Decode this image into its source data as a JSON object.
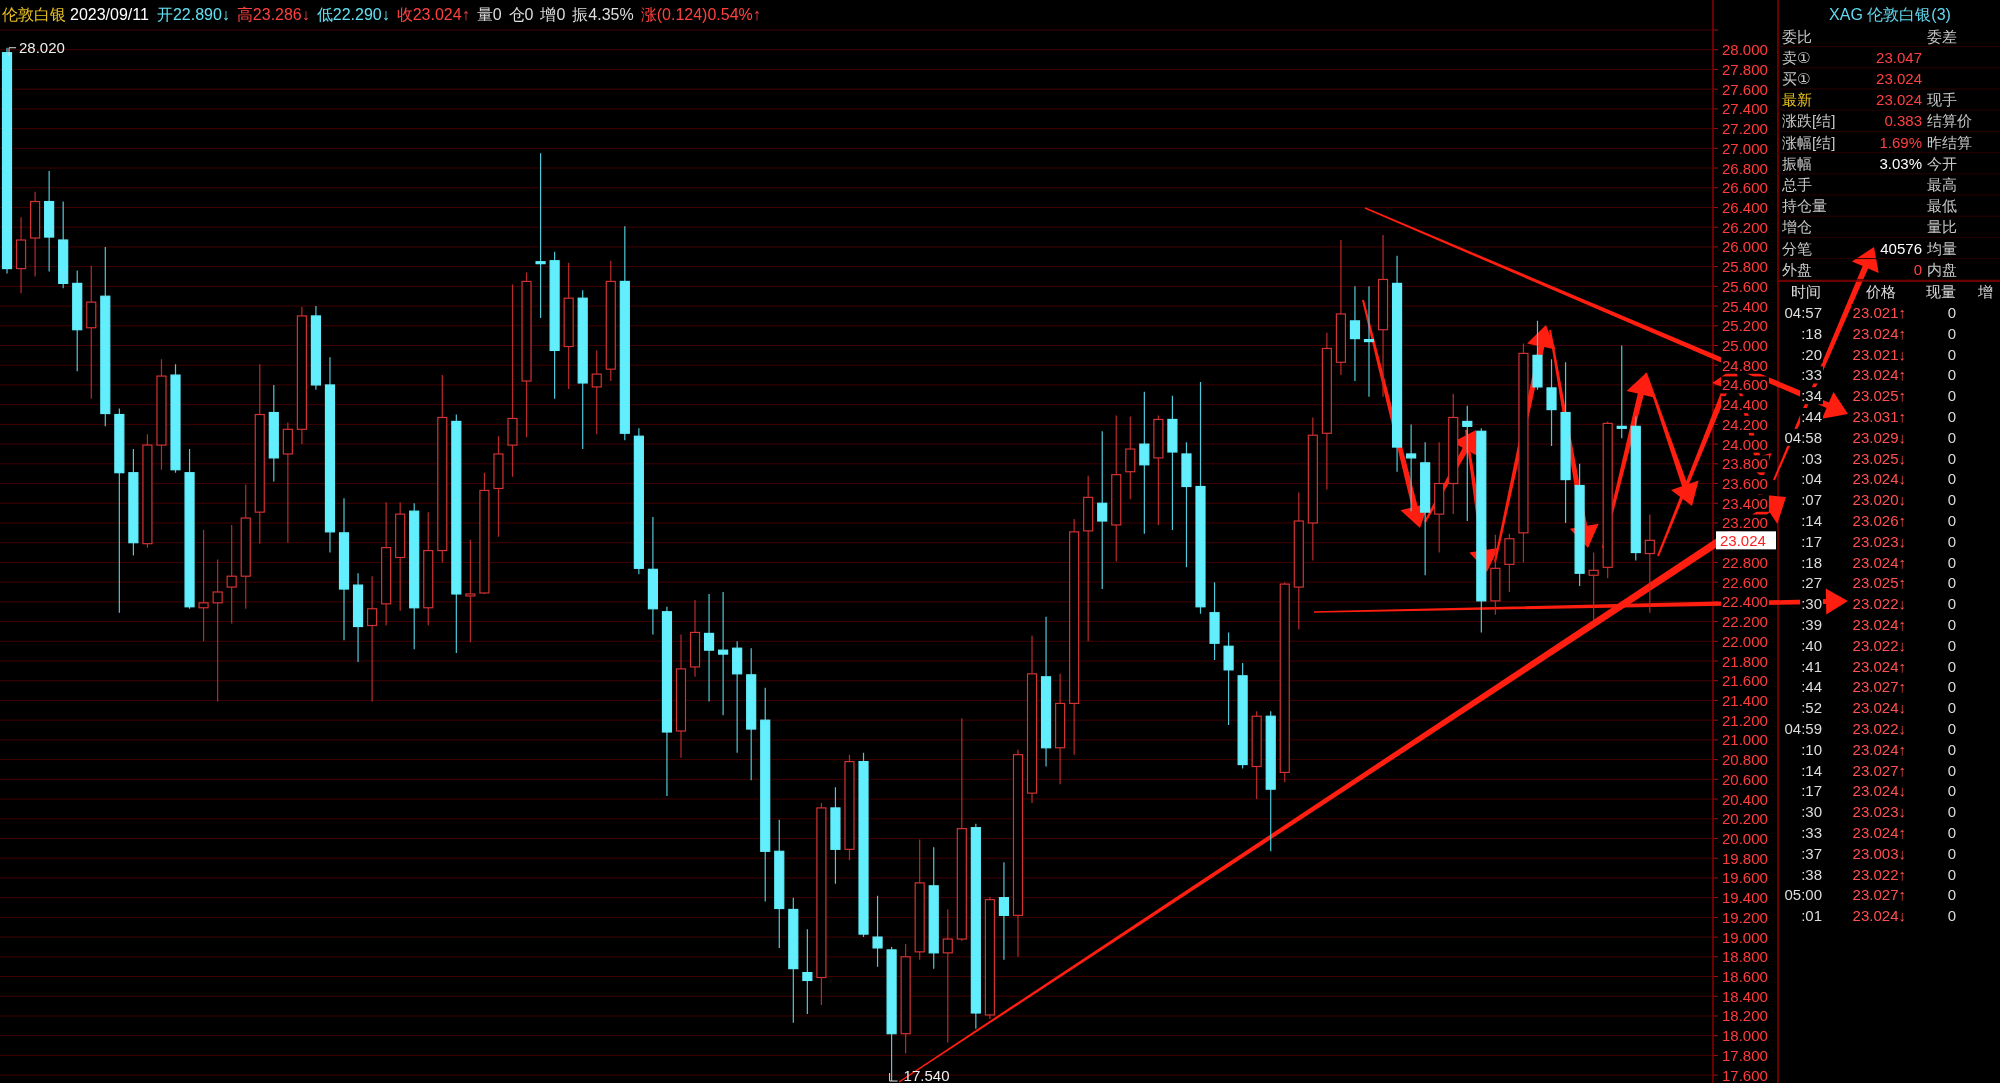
{
  "chart_data": [
    {
      "type": "candlestick",
      "title": "伦敦白银",
      "annotations": [
        "2023/09/11",
        "开22.890↓",
        "高23.286↓",
        "低22.290↓",
        "收23.024↑",
        "量0",
        "仓0",
        "增0",
        "振4.35%",
        "涨(0.124)0.54%↑",
        "28.020",
        "17.540",
        "23.024"
      ],
      "categories": [
        null,
        null,
        null,
        null,
        null,
        null,
        null,
        null,
        null,
        null,
        null,
        null,
        null,
        null,
        null,
        null,
        null,
        null,
        null,
        null,
        null,
        null,
        null,
        null,
        null,
        null,
        null,
        null,
        null,
        null,
        null,
        null,
        null,
        null,
        null,
        null,
        null,
        null,
        null,
        null,
        null,
        null,
        null,
        null,
        null,
        null,
        null,
        null,
        null,
        null,
        null,
        null,
        null,
        null,
        null,
        null,
        null,
        null,
        null,
        null,
        null,
        null,
        null,
        null,
        null,
        null,
        null,
        null,
        null,
        null,
        null,
        null,
        null,
        null,
        null,
        null,
        null,
        null,
        null,
        null,
        null,
        null,
        null,
        null,
        null,
        null,
        null,
        null,
        null,
        null,
        null,
        null,
        null,
        null,
        null,
        null,
        null,
        null,
        null,
        null,
        null,
        null,
        null,
        null,
        null,
        null,
        null,
        null,
        null,
        null,
        null,
        null,
        null,
        null,
        null,
        null,
        null,
        null,
        null,
        null,
        null,
        null
      ],
      "ohlc": [
        [
          27.97,
          28.02,
          25.73,
          25.78
        ],
        [
          25.78,
          26.3,
          25.53,
          26.07
        ],
        [
          26.09,
          26.56,
          25.7,
          26.46
        ],
        [
          26.46,
          26.77,
          25.75,
          26.1
        ],
        [
          26.07,
          26.46,
          25.58,
          25.63
        ],
        [
          25.63,
          25.76,
          24.74,
          25.16
        ],
        [
          25.18,
          25.81,
          24.46,
          25.44
        ],
        [
          25.5,
          26.0,
          24.18,
          24.31
        ],
        [
          24.3,
          24.36,
          22.29,
          23.71
        ],
        [
          23.71,
          23.95,
          22.87,
          23.0
        ],
        [
          22.99,
          24.1,
          22.95,
          23.99
        ],
        [
          23.99,
          24.86,
          23.74,
          24.69
        ],
        [
          24.7,
          24.81,
          23.71,
          23.74
        ],
        [
          23.71,
          23.95,
          22.33,
          22.35
        ],
        [
          22.34,
          23.13,
          22.0,
          22.39
        ],
        [
          22.39,
          22.83,
          21.39,
          22.5
        ],
        [
          22.55,
          23.18,
          22.18,
          22.66
        ],
        [
          22.66,
          23.59,
          22.33,
          23.25
        ],
        [
          23.31,
          24.81,
          22.99,
          24.3
        ],
        [
          24.32,
          24.6,
          23.62,
          23.86
        ],
        [
          23.9,
          24.22,
          23.0,
          24.15
        ],
        [
          24.15,
          25.39,
          24.0,
          25.3
        ],
        [
          25.3,
          25.4,
          24.55,
          24.6
        ],
        [
          24.6,
          24.88,
          22.9,
          23.11
        ],
        [
          23.1,
          23.45,
          22.01,
          22.53
        ],
        [
          22.57,
          22.69,
          21.79,
          22.15
        ],
        [
          22.16,
          22.66,
          21.39,
          22.33
        ],
        [
          22.38,
          23.41,
          22.16,
          22.95
        ],
        [
          22.85,
          23.41,
          22.31,
          23.29
        ],
        [
          23.32,
          23.4,
          21.92,
          22.34
        ],
        [
          22.34,
          23.31,
          22.16,
          22.92
        ],
        [
          22.92,
          24.7,
          22.8,
          24.27
        ],
        [
          24.23,
          24.3,
          21.88,
          22.48
        ],
        [
          22.46,
          23.03,
          21.99,
          22.48
        ],
        [
          22.49,
          23.71,
          22.48,
          23.53
        ],
        [
          23.55,
          24.08,
          23.06,
          23.9
        ],
        [
          23.99,
          25.62,
          23.67,
          24.26
        ],
        [
          24.64,
          25.74,
          24.07,
          25.65
        ],
        [
          25.85,
          26.95,
          25.28,
          25.83
        ],
        [
          25.86,
          25.95,
          24.46,
          24.95
        ],
        [
          24.99,
          25.84,
          24.56,
          25.48
        ],
        [
          25.48,
          25.56,
          23.95,
          24.62
        ],
        [
          24.58,
          24.95,
          24.1,
          24.71
        ],
        [
          24.76,
          25.86,
          24.64,
          25.65
        ],
        [
          25.65,
          26.21,
          24.04,
          24.11
        ],
        [
          24.08,
          24.16,
          22.68,
          22.74
        ],
        [
          22.73,
          23.26,
          22.07,
          22.33
        ],
        [
          22.3,
          22.35,
          20.43,
          21.08
        ],
        [
          21.09,
          22.07,
          20.82,
          21.72
        ],
        [
          21.74,
          22.42,
          21.64,
          22.09
        ],
        [
          22.08,
          22.48,
          21.39,
          21.91
        ],
        [
          21.91,
          22.5,
          21.25,
          21.87
        ],
        [
          21.93,
          22.0,
          20.87,
          21.67
        ],
        [
          21.66,
          21.93,
          20.59,
          21.11
        ],
        [
          21.2,
          21.53,
          19.36,
          19.87
        ],
        [
          19.87,
          20.19,
          18.89,
          19.29
        ],
        [
          19.28,
          19.4,
          18.13,
          18.68
        ],
        [
          18.64,
          19.08,
          18.22,
          18.56
        ],
        [
          18.59,
          20.36,
          18.31,
          20.31
        ],
        [
          20.31,
          20.52,
          19.54,
          19.89
        ],
        [
          19.89,
          20.85,
          19.78,
          20.78
        ],
        [
          20.78,
          20.87,
          19.0,
          19.03
        ],
        [
          19.0,
          19.42,
          18.7,
          18.89
        ],
        [
          18.87,
          18.9,
          17.54,
          18.02
        ],
        [
          18.02,
          18.93,
          17.82,
          18.8
        ],
        [
          18.85,
          19.99,
          18.77,
          19.55
        ],
        [
          19.52,
          19.91,
          18.68,
          18.84
        ],
        [
          18.84,
          19.28,
          17.93,
          18.98
        ],
        [
          18.98,
          21.22,
          18.96,
          20.1
        ],
        [
          20.11,
          20.15,
          18.07,
          18.23
        ],
        [
          18.21,
          19.41,
          18.17,
          19.38
        ],
        [
          19.4,
          19.76,
          18.77,
          19.22
        ],
        [
          19.22,
          20.9,
          18.8,
          20.85
        ],
        [
          20.46,
          22.06,
          20.36,
          21.67
        ],
        [
          21.64,
          22.25,
          20.73,
          20.92
        ],
        [
          20.92,
          21.67,
          20.55,
          21.37
        ],
        [
          21.37,
          23.24,
          20.85,
          23.11
        ],
        [
          23.12,
          23.68,
          22.0,
          23.46
        ],
        [
          23.4,
          24.13,
          22.53,
          23.22
        ],
        [
          23.18,
          24.29,
          22.81,
          23.69
        ],
        [
          23.72,
          24.28,
          23.44,
          23.95
        ],
        [
          24.0,
          24.53,
          23.09,
          23.79
        ],
        [
          23.86,
          24.29,
          23.18,
          24.25
        ],
        [
          24.25,
          24.49,
          23.13,
          23.92
        ],
        [
          23.9,
          24.02,
          22.75,
          23.57
        ],
        [
          23.57,
          24.63,
          22.28,
          22.35
        ],
        [
          22.29,
          22.6,
          21.81,
          21.98
        ],
        [
          21.95,
          22.09,
          21.15,
          21.71
        ],
        [
          21.65,
          21.78,
          20.71,
          20.75
        ],
        [
          20.73,
          21.29,
          20.4,
          21.24
        ],
        [
          21.24,
          21.29,
          19.87,
          20.5
        ],
        [
          20.67,
          22.6,
          20.57,
          22.58
        ],
        [
          22.55,
          23.51,
          22.12,
          23.22
        ],
        [
          23.2,
          24.27,
          22.82,
          24.09
        ],
        [
          24.11,
          25.13,
          23.54,
          24.97
        ],
        [
          24.83,
          26.07,
          24.7,
          25.32
        ],
        [
          25.25,
          25.6,
          24.64,
          25.07
        ],
        [
          25.06,
          25.6,
          24.48,
          25.04
        ],
        [
          25.16,
          26.12,
          24.48,
          25.67
        ],
        [
          25.63,
          25.91,
          23.72,
          23.97
        ],
        [
          23.9,
          24.2,
          23.32,
          23.86
        ],
        [
          23.81,
          24.02,
          22.67,
          23.31
        ],
        [
          23.29,
          24.02,
          22.9,
          23.6
        ],
        [
          23.6,
          24.51,
          23.29,
          24.27
        ],
        [
          24.23,
          24.39,
          23.22,
          24.18
        ],
        [
          24.13,
          24.16,
          22.09,
          22.41
        ],
        [
          22.41,
          23.08,
          22.27,
          22.74
        ],
        [
          22.78,
          23.09,
          22.5,
          23.04
        ],
        [
          23.1,
          25.02,
          22.8,
          24.92
        ],
        [
          24.9,
          25.25,
          24.55,
          24.58
        ],
        [
          24.57,
          24.86,
          23.98,
          24.35
        ],
        [
          24.32,
          24.83,
          23.2,
          23.64
        ],
        [
          23.58,
          23.8,
          22.56,
          22.69
        ],
        [
          22.67,
          22.9,
          22.21,
          22.72
        ],
        [
          22.75,
          24.23,
          22.64,
          24.21
        ],
        [
          24.18,
          25.0,
          24.06,
          24.16
        ],
        [
          24.18,
          24.28,
          22.82,
          22.9
        ],
        [
          22.89,
          23.286,
          22.29,
          23.024
        ],
        null,
        null,
        null,
        null
      ],
      "ylim": [
        17.52,
        28.2
      ],
      "yticks": [
        {
          "value": 17.6,
          "label": "17.600"
        },
        {
          "value": 17.8,
          "label": "17.800"
        },
        {
          "value": 18.0,
          "label": "18.000"
        },
        {
          "value": 18.2,
          "label": "18.200"
        },
        {
          "value": 18.4,
          "label": "18.400"
        },
        {
          "value": 18.6,
          "label": "18.600"
        },
        {
          "value": 18.8,
          "label": "18.800"
        },
        {
          "value": 19.0,
          "label": "19.000"
        },
        {
          "value": 19.2,
          "label": "19.200"
        },
        {
          "value": 19.4,
          "label": "19.400"
        },
        {
          "value": 19.6,
          "label": "19.600"
        },
        {
          "value": 19.8,
          "label": "19.800"
        },
        {
          "value": 20.0,
          "label": "20.000"
        },
        {
          "value": 20.2,
          "label": "20.200"
        },
        {
          "value": 20.4,
          "label": "20.400"
        },
        {
          "value": 20.6,
          "label": "20.600"
        },
        {
          "value": 20.8,
          "label": "20.800"
        },
        {
          "value": 21.0,
          "label": "21.000"
        },
        {
          "value": 21.2,
          "label": "21.200"
        },
        {
          "value": 21.4,
          "label": "21.400"
        },
        {
          "value": 21.6,
          "label": "21.600"
        },
        {
          "value": 21.8,
          "label": "21.800"
        },
        {
          "value": 22.0,
          "label": "22.000"
        },
        {
          "value": 22.2,
          "label": "22.200"
        },
        {
          "value": 22.4,
          "label": "22.400"
        },
        {
          "value": 22.6,
          "label": "22.600"
        },
        {
          "value": 22.8,
          "label": "22.800"
        },
        {
          "value": 23.0,
          "label": null
        },
        {
          "value": 23.2,
          "label": "23.200"
        },
        {
          "value": 23.4,
          "label": "23.400"
        },
        {
          "value": 23.6,
          "label": "23.600"
        },
        {
          "value": 23.8,
          "label": "23.800"
        },
        {
          "value": 24.0,
          "label": "24.000"
        },
        {
          "value": 24.2,
          "label": "24.200"
        },
        {
          "value": 24.4,
          "label": "24.400"
        },
        {
          "value": 24.6,
          "label": "24.600"
        },
        {
          "value": 24.8,
          "label": "24.800"
        },
        {
          "value": 25.0,
          "label": "25.000"
        },
        {
          "value": 25.2,
          "label": "25.200"
        },
        {
          "value": 25.4,
          "label": "25.400"
        },
        {
          "value": 25.6,
          "label": "25.600"
        },
        {
          "value": 25.8,
          "label": "25.800"
        },
        {
          "value": 26.0,
          "label": "26.000"
        },
        {
          "value": 26.2,
          "label": "26.200"
        },
        {
          "value": 26.4,
          "label": "26.400"
        },
        {
          "value": 26.6,
          "label": "26.600"
        },
        {
          "value": 26.8,
          "label": "26.800"
        },
        {
          "value": 27.0,
          "label": "27.000"
        },
        {
          "value": 27.2,
          "label": "27.200"
        },
        {
          "value": 27.4,
          "label": "27.400"
        },
        {
          "value": 27.6,
          "label": "27.600"
        },
        {
          "value": 27.8,
          "label": "27.800"
        },
        {
          "value": 28.0,
          "label": "28.000"
        },
        {
          "value": 28.2,
          "label": null
        }
      ],
      "grid": "y",
      "tick_labels": "y"
    },
    {
      "type": "other",
      "title": "XAG 伦敦白银(3)",
      "annotations": [
        "委比",
        "委差",
        "卖①",
        "23.047",
        "买①",
        "23.024",
        "最新",
        "23.024",
        "现手",
        "涨跌[结]",
        "0.383",
        "结算价",
        "涨幅[结]",
        "1.69%",
        "昨结算",
        "振幅",
        "3.03%",
        "今开",
        "总手",
        "最高",
        "持仓量",
        "最低",
        "增仓",
        "量比",
        "分笔",
        "40576",
        "均量",
        "外盘",
        "0",
        "内盘",
        "时间",
        "价格",
        "现量",
        "增",
        "04:57",
        "23.021↑",
        "0",
        ":18",
        "23.024↑",
        "0",
        ":20",
        "23.021↓",
        "0",
        ":33",
        "23.024↑",
        "0",
        ":34",
        "23.025↑",
        "0",
        ":44",
        "23.031↑",
        "0",
        "04:58",
        "23.029↓",
        "0",
        ":03",
        "23.025↓",
        "0",
        ":04",
        "23.024↓",
        "0",
        ":07",
        "23.020↓",
        "0",
        ":14",
        "23.026↑",
        "0",
        ":17",
        "23.023↓",
        "0",
        ":18",
        "23.024↑",
        "0",
        ":27",
        "23.025↑",
        "0",
        ":30",
        "23.022↓",
        "0",
        ":39",
        "23.024↑",
        "0",
        ":40",
        "23.022↓",
        "0",
        ":41",
        "23.024↑",
        "0",
        ":44",
        "23.027↑",
        "0",
        ":52",
        "23.024↓",
        "0",
        "04:59",
        "23.022↓",
        "0",
        ":10",
        "23.024↑",
        "0",
        ":14",
        "23.027↑",
        "0",
        ":17",
        "23.024↓",
        "0",
        ":30",
        "23.023↓",
        "0",
        ":33",
        "23.024↑",
        "0",
        ":37",
        "23.003↓",
        "0",
        ":38",
        "23.022↑",
        "0",
        "05:00",
        "23.027↑",
        "0",
        ":01",
        "23.024↓",
        "0"
      ]
    }
  ]
}
